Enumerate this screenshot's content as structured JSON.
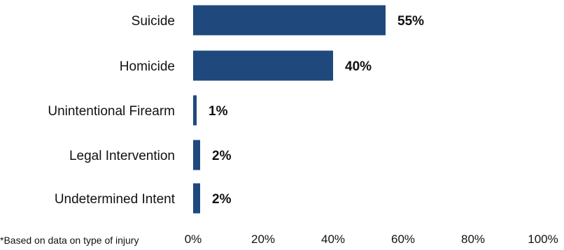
{
  "chart_data": {
    "type": "bar",
    "orientation": "horizontal",
    "categories": [
      "Suicide",
      "Homicide",
      "Unintentional Firearm",
      "Legal Intervention",
      "Undetermined Intent"
    ],
    "values": [
      55,
      40,
      1,
      2,
      2
    ],
    "data_labels": [
      "55%",
      "40%",
      "1%",
      "2%",
      "2%"
    ],
    "x_ticks": [
      "0%",
      "20%",
      "40%",
      "60%",
      "80%",
      "100%"
    ],
    "xlim": [
      0,
      100
    ],
    "bar_color": "#1f497d",
    "grid": false,
    "title": "",
    "xlabel": "",
    "ylabel": ""
  },
  "footnote": "*Based on data on type of injury"
}
